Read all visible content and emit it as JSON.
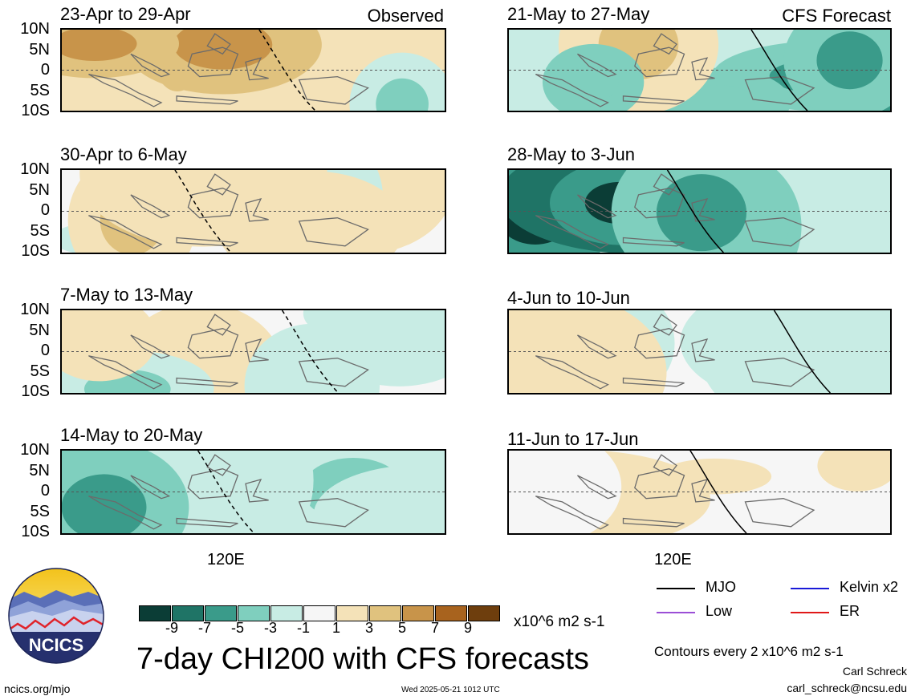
{
  "chart_data": {
    "type": "heatmap",
    "title": "7-day CHI200 with CFS forecasts",
    "colorbar": {
      "unit_label": "x10^6 m2 s-1",
      "tick_labels": [
        "-9",
        "-7",
        "-5",
        "-3",
        "-1",
        "1",
        "3",
        "5",
        "7",
        "9"
      ],
      "colors": [
        "#0b3d36",
        "#1f7466",
        "#3a9b8a",
        "#7fcfbe",
        "#c8ece4",
        "#f6f6f6",
        "#f4e2b8",
        "#e0c27e",
        "#c8944a",
        "#a8631e",
        "#6e3e0d"
      ]
    },
    "ytick_labels": [
      "10N",
      "5N",
      "0",
      "5S",
      "10S"
    ],
    "xtick_label": "120E",
    "observed_label": "Observed",
    "forecast_label": "CFS Forecast",
    "contour_note": "Contours every 2 x10^6 m2 s-1",
    "legend": [
      {
        "name": "MJO",
        "color": "#000000"
      },
      {
        "name": "Kelvin x2",
        "color": "#1a1ad8"
      },
      {
        "name": "Low",
        "color": "#9b4fd6"
      },
      {
        "name": "ER",
        "color": "#e01818"
      }
    ],
    "panels": [
      {
        "label": "23-Apr to 29-Apr",
        "kind": "observed",
        "mean_anomaly": 3.0
      },
      {
        "label": "30-Apr to 6-May",
        "kind": "observed",
        "mean_anomaly": 2.0
      },
      {
        "label": "7-May to 13-May",
        "kind": "observed",
        "mean_anomaly": -2.5
      },
      {
        "label": "14-May to 20-May",
        "kind": "observed",
        "mean_anomaly": -3.0
      },
      {
        "label": "21-May to 27-May",
        "kind": "forecast",
        "mean_anomaly": -5.0
      },
      {
        "label": "28-May to 3-Jun",
        "kind": "forecast",
        "mean_anomaly": -5.5
      },
      {
        "label": "4-Jun to 10-Jun",
        "kind": "forecast",
        "mean_anomaly": -2.0
      },
      {
        "label": "11-Jun to 17-Jun",
        "kind": "forecast",
        "mean_anomaly": 1.0
      }
    ]
  },
  "logo_text": "NCICS",
  "site": "ncics.org/mjo",
  "timestamp": "Wed 2025-05-21 1012 UTC",
  "author": "Carl Schreck",
  "email": "carl_schreck@ncsu.edu"
}
